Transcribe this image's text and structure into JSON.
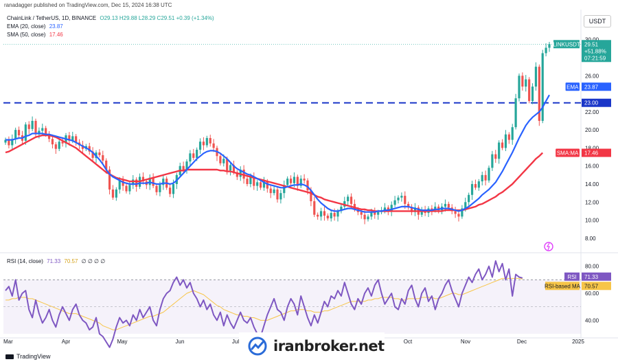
{
  "header": {
    "text": "ranadagger published on TradingView.com, Dec 15, 2024 16:38 UTC"
  },
  "legend": {
    "symbol": "ChainLink / TetherUS, 1D, BINANCE",
    "ohlc": "O29.13 H29.88 L28.29 C29.51 +0.39 (+1.34%)",
    "ema_label": "EMA (20, close)",
    "ema_value": "23.87",
    "sma_label": "SMA (50, close)",
    "sma_value": "17.46",
    "rsi_label": "RSI (14, close)",
    "rsi_value": "71.33",
    "rsi_ma_value": "70.57",
    "rsi_extra": "∅ ∅ ∅ ∅"
  },
  "axis_unit": "USDT",
  "price_tags": {
    "symbol": "LINKUSDT",
    "price": "29.51",
    "change": "+51.88%",
    "countdown": "07:21:59",
    "ema_label": "EMA",
    "ema_value": "23.87",
    "level": "23.00",
    "sma_label": "SMA:MA",
    "sma_value": "17.46",
    "rsi_label": "RSI",
    "rsi_value": "71.33",
    "rsi_ma_label": "RSI-based MA",
    "rsi_ma_value": "70.57"
  },
  "footer": {
    "brand": "TradingView"
  },
  "watermark": {
    "text": "iranbroker.net"
  },
  "colors": {
    "up": "#26a69a",
    "down": "#ef5350",
    "ema": "#2962ff",
    "sma": "#f23645",
    "rsi": "#7e57c2",
    "rsi_ma": "#f7c548",
    "level": "#1a36c8"
  },
  "chart_data": {
    "type": "candlestick",
    "price_axis": {
      "ticks": [
        8,
        10,
        12,
        14,
        16,
        18,
        20,
        22,
        26,
        30
      ],
      "range": [
        7,
        31.5
      ]
    },
    "time_axis": {
      "labels": [
        "Mar",
        "Apr",
        "May",
        "Jun",
        "Jul",
        "Aug",
        "Sep",
        "Oct",
        "Nov",
        "Dec",
        "2025"
      ]
    },
    "horizontal_level": 23.0,
    "price_close": [
      18.9,
      18.3,
      19.0,
      20.0,
      19.4,
      18.8,
      20.6,
      20.1,
      21.0,
      19.5,
      19.9,
      20.2,
      19.5,
      19.0,
      18.4,
      17.9,
      18.7,
      18.5,
      19.4,
      18.8,
      19.3,
      18.6,
      18.3,
      17.9,
      18.2,
      17.6,
      16.9,
      17.5,
      17.2,
      16.6,
      15.6,
      13.4,
      12.5,
      13.4,
      14.4,
      13.8,
      13.2,
      13.9,
      14.5,
      13.7,
      14.8,
      14.3,
      13.9,
      14.7,
      13.8,
      13.1,
      13.9,
      14.6,
      13.6,
      12.9,
      14.0,
      15.0,
      16.0,
      15.6,
      16.5,
      17.4,
      16.9,
      17.8,
      18.7,
      18.3,
      19.1,
      18.5,
      18.0,
      17.1,
      16.3,
      16.8,
      15.5,
      16.1,
      15.3,
      14.8,
      15.6,
      14.6,
      14.0,
      14.8,
      13.8,
      14.2,
      13.6,
      14.3,
      13.5,
      13.0,
      13.4,
      12.3,
      13.0,
      13.9,
      14.6,
      14.1,
      14.8,
      13.8,
      14.6,
      14.4,
      13.3,
      12.1,
      10.6,
      10.4,
      11.0,
      10.5,
      10.2,
      10.8,
      10.4,
      11.0,
      11.5,
      12.1,
      12.6,
      11.8,
      11.2,
      10.9,
      10.6,
      10.1,
      10.4,
      10.9,
      10.6,
      10.9,
      11.1,
      11.4,
      11.0,
      11.7,
      12.2,
      12.5,
      12.7,
      11.8,
      11.4,
      10.9,
      11.4,
      10.6,
      11.1,
      10.8,
      11.3,
      11.1,
      11.5,
      11.1,
      11.5,
      11.8,
      11.4,
      11.0,
      10.7,
      10.4,
      11.3,
      12.0,
      12.8,
      14.0,
      13.6,
      14.3,
      15.0,
      14.4,
      15.8,
      17.3,
      16.8,
      18.6,
      18.0,
      19.5,
      18.9,
      20.3,
      23.5,
      26.0,
      24.8,
      25.6,
      23.2,
      24.8,
      27.0,
      21.0,
      28.5,
      29.1,
      29.5
    ],
    "ema_20": [
      18.9,
      18.9,
      18.9,
      19.0,
      19.1,
      19.1,
      19.3,
      19.4,
      19.6,
      19.6,
      19.6,
      19.6,
      19.5,
      19.5,
      19.4,
      19.3,
      19.2,
      19.1,
      19.0,
      18.9,
      18.8,
      18.6,
      18.4,
      18.2,
      18.0,
      17.8,
      17.5,
      17.1,
      16.7,
      16.2,
      15.6,
      15.1,
      14.8,
      14.6,
      14.4,
      14.2,
      14.1,
      14.0,
      14.0,
      14.0,
      14.1,
      14.1,
      14.1,
      14.2,
      14.1,
      14.0,
      14.0,
      14.1,
      14.1,
      14.0,
      14.1,
      14.4,
      14.8,
      15.2,
      15.6,
      16.0,
      16.4,
      16.8,
      17.1,
      17.4,
      17.6,
      17.7,
      17.7,
      17.6,
      17.4,
      17.1,
      16.8,
      16.4,
      16.0,
      15.7,
      15.5,
      15.3,
      15.1,
      15.0,
      14.8,
      14.6,
      14.4,
      14.2,
      14.0,
      13.9,
      13.8,
      13.7,
      13.6,
      13.6,
      13.7,
      13.8,
      13.9,
      13.9,
      14.0,
      13.9,
      13.7,
      13.3,
      12.8,
      12.3,
      11.9,
      11.6,
      11.3,
      11.1,
      11.0,
      11.0,
      11.1,
      11.2,
      11.3,
      11.3,
      11.2,
      11.1,
      11.0,
      10.9,
      10.9,
      10.9,
      10.9,
      11.0,
      11.0,
      11.1,
      11.1,
      11.2,
      11.3,
      11.4,
      11.5,
      11.5,
      11.5,
      11.4,
      11.3,
      11.2,
      11.1,
      11.1,
      11.1,
      11.1,
      11.2,
      11.2,
      11.3,
      11.3,
      11.3,
      11.2,
      11.1,
      11.0,
      11.1,
      11.3,
      11.5,
      11.8,
      12.1,
      12.4,
      12.8,
      13.1,
      13.4,
      13.8,
      14.2,
      14.8,
      15.4,
      16.1,
      16.8,
      17.5,
      18.3,
      19.1,
      19.8,
      20.5,
      21.0,
      21.4,
      21.7,
      22.0,
      22.5,
      23.2,
      23.87
    ],
    "sma_50": [
      17.5,
      17.6,
      17.8,
      18.0,
      18.2,
      18.4,
      18.6,
      18.8,
      19.0,
      19.2,
      19.3,
      19.4,
      19.4,
      19.4,
      19.3,
      19.2,
      19.0,
      18.8,
      18.6,
      18.4,
      18.2,
      18.0,
      17.7,
      17.4,
      17.1,
      16.8,
      16.5,
      16.2,
      15.9,
      15.6,
      15.3,
      15.1,
      14.9,
      14.7,
      14.6,
      14.5,
      14.4,
      14.3,
      14.3,
      14.3,
      14.3,
      14.4,
      14.5,
      14.6,
      14.7,
      14.8,
      14.9,
      15.0,
      15.1,
      15.2,
      15.3,
      15.4,
      15.5,
      15.5,
      15.6,
      15.6,
      15.6,
      15.6,
      15.6,
      15.6,
      15.6,
      15.6,
      15.6,
      15.6,
      15.5,
      15.5,
      15.4,
      15.4,
      15.3,
      15.2,
      15.1,
      15.0,
      14.9,
      14.8,
      14.7,
      14.6,
      14.5,
      14.4,
      14.3,
      14.2,
      14.1,
      14.0,
      13.9,
      13.8,
      13.7,
      13.6,
      13.5,
      13.4,
      13.3,
      13.2,
      13.1,
      13.0,
      12.8,
      12.6,
      12.5,
      12.3,
      12.2,
      12.1,
      12.0,
      11.9,
      11.8,
      11.7,
      11.6,
      11.5,
      11.4,
      11.3,
      11.2,
      11.2,
      11.1,
      11.1,
      11.0,
      11.0,
      11.0,
      11.0,
      11.0,
      11.0,
      11.0,
      11.0,
      11.0,
      11.0,
      11.0,
      11.0,
      11.0,
      11.0,
      11.0,
      11.0,
      11.0,
      11.0,
      11.0,
      11.0,
      11.0,
      11.1,
      11.1,
      11.1,
      11.1,
      11.1,
      11.1,
      11.2,
      11.3,
      11.4,
      11.5,
      11.7,
      11.8,
      12.0,
      12.2,
      12.4,
      12.6,
      12.9,
      13.1,
      13.4,
      13.7,
      14.0,
      14.4,
      14.8,
      15.2,
      15.6,
      16.0,
      16.4,
      16.8,
      17.1,
      17.46
    ],
    "rsi_axis": {
      "ticks": [
        40,
        60,
        80
      ],
      "range": [
        28,
        88
      ],
      "upper_band": 70,
      "lower_band": 30
    },
    "rsi": [
      62,
      65,
      58,
      70,
      55,
      60,
      62,
      48,
      42,
      55,
      45,
      38,
      42,
      48,
      40,
      35,
      44,
      50,
      45,
      40,
      48,
      52,
      44,
      40,
      38,
      33,
      35,
      42,
      30,
      28,
      24,
      20,
      26,
      35,
      42,
      38,
      40,
      36,
      44,
      40,
      48,
      42,
      46,
      50,
      40,
      36,
      48,
      56,
      60,
      62,
      68,
      72,
      66,
      70,
      64,
      68,
      60,
      56,
      50,
      55,
      48,
      52,
      44,
      40,
      46,
      36,
      44,
      38,
      34,
      40,
      46,
      40,
      38,
      42,
      35,
      30,
      28,
      36,
      44,
      50,
      56,
      48,
      46,
      40,
      50,
      56,
      52,
      44,
      58,
      50,
      42,
      36,
      44,
      38,
      46,
      54,
      50,
      58,
      56,
      62,
      58,
      68,
      60,
      52,
      48,
      56,
      52,
      60,
      64,
      58,
      66,
      70,
      60,
      52,
      56,
      60,
      50,
      48,
      56,
      52,
      62,
      66,
      56,
      50,
      60,
      64,
      54,
      58,
      48,
      56,
      60,
      66,
      70,
      62,
      56,
      50,
      60,
      66,
      72,
      68,
      74,
      78,
      70,
      74,
      80,
      72,
      84,
      76,
      82,
      70,
      78,
      58,
      74,
      72,
      71.33
    ],
    "rsi_ma": [
      55,
      55,
      56,
      56,
      57,
      57,
      57,
      56,
      56,
      55,
      54,
      53,
      52,
      51,
      50,
      49,
      48,
      47,
      46,
      45,
      45,
      45,
      44,
      43,
      42,
      41,
      40,
      39,
      38,
      36,
      35,
      34,
      33,
      33,
      34,
      35,
      36,
      37,
      38,
      39,
      40,
      41,
      42,
      43,
      43,
      44,
      45,
      46,
      48,
      50,
      52,
      54,
      56,
      58,
      60,
      61,
      62,
      61,
      60,
      59,
      57,
      55,
      53,
      51,
      50,
      48,
      47,
      46,
      45,
      44,
      44,
      43,
      43,
      42,
      42,
      41,
      40,
      40,
      40,
      41,
      42,
      43,
      44,
      45,
      46,
      47,
      47,
      48,
      48,
      48,
      47,
      47,
      46,
      46,
      46,
      47,
      47,
      48,
      49,
      50,
      51,
      52,
      53,
      54,
      54,
      54,
      54,
      54,
      55,
      55,
      56,
      56,
      57,
      57,
      57,
      57,
      56,
      56,
      55,
      55,
      56,
      56,
      56,
      56,
      57,
      57,
      57,
      57,
      56,
      56,
      57,
      58,
      59,
      60,
      60,
      59,
      59,
      60,
      61,
      62,
      63,
      64,
      65,
      66,
      67,
      68,
      69,
      70,
      71,
      71,
      71,
      71,
      71,
      71,
      70.57
    ]
  }
}
